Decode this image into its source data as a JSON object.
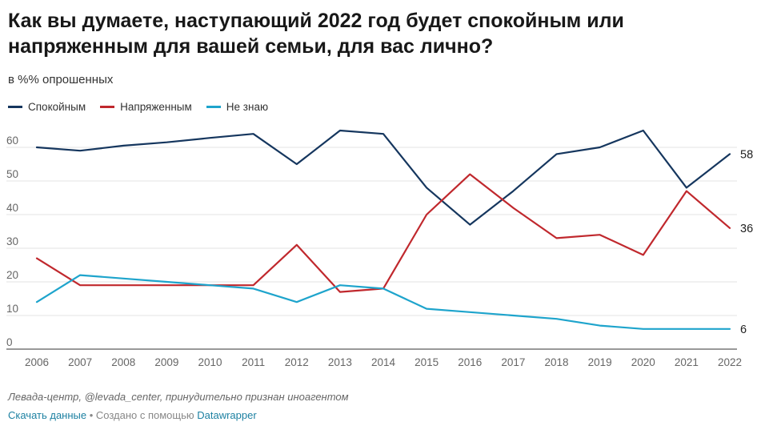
{
  "header": {
    "title": "Как вы думаете, наступающий 2022 год будет спокойным или напряженным для вашей семьи, для вас лично?",
    "subtitle": "в %% опрошенных"
  },
  "chart_data": {
    "type": "line",
    "x": [
      2006,
      2007,
      2008,
      2009,
      2010,
      2011,
      2012,
      2013,
      2014,
      2015,
      2016,
      2017,
      2018,
      2019,
      2020,
      2021,
      2022
    ],
    "series": [
      {
        "name": "Спокойным",
        "color": "#15365e",
        "values": [
          60,
          59,
          60.5,
          61.5,
          62.8,
          64,
          55,
          65,
          64,
          48,
          37,
          47,
          58,
          60,
          65,
          48,
          58
        ],
        "end_label": "58"
      },
      {
        "name": "Напряженным",
        "color": "#c0282d",
        "values": [
          27,
          19,
          19,
          19,
          19,
          19,
          31,
          17,
          18,
          40,
          52,
          42,
          33,
          34,
          28,
          47,
          36
        ],
        "end_label": "36"
      },
      {
        "name": "Не знаю",
        "color": "#1ea4cc",
        "values": [
          14,
          22,
          21,
          20,
          19,
          18,
          14,
          19,
          18,
          12,
          11,
          10,
          9,
          7,
          6,
          6,
          6
        ],
        "end_label": "6"
      }
    ],
    "y_ticks": [
      0,
      10,
      20,
      30,
      40,
      50,
      60
    ],
    "ylim": [
      0,
      68
    ],
    "grid": "horizontal",
    "legend_position": "top-left"
  },
  "footer": {
    "source": "Левада-центр, @levada_center, принудительно признан иноагентом",
    "download_label": "Скачать данные",
    "separator": " • Создано с помощью ",
    "tool_label": "Datawrapper"
  }
}
